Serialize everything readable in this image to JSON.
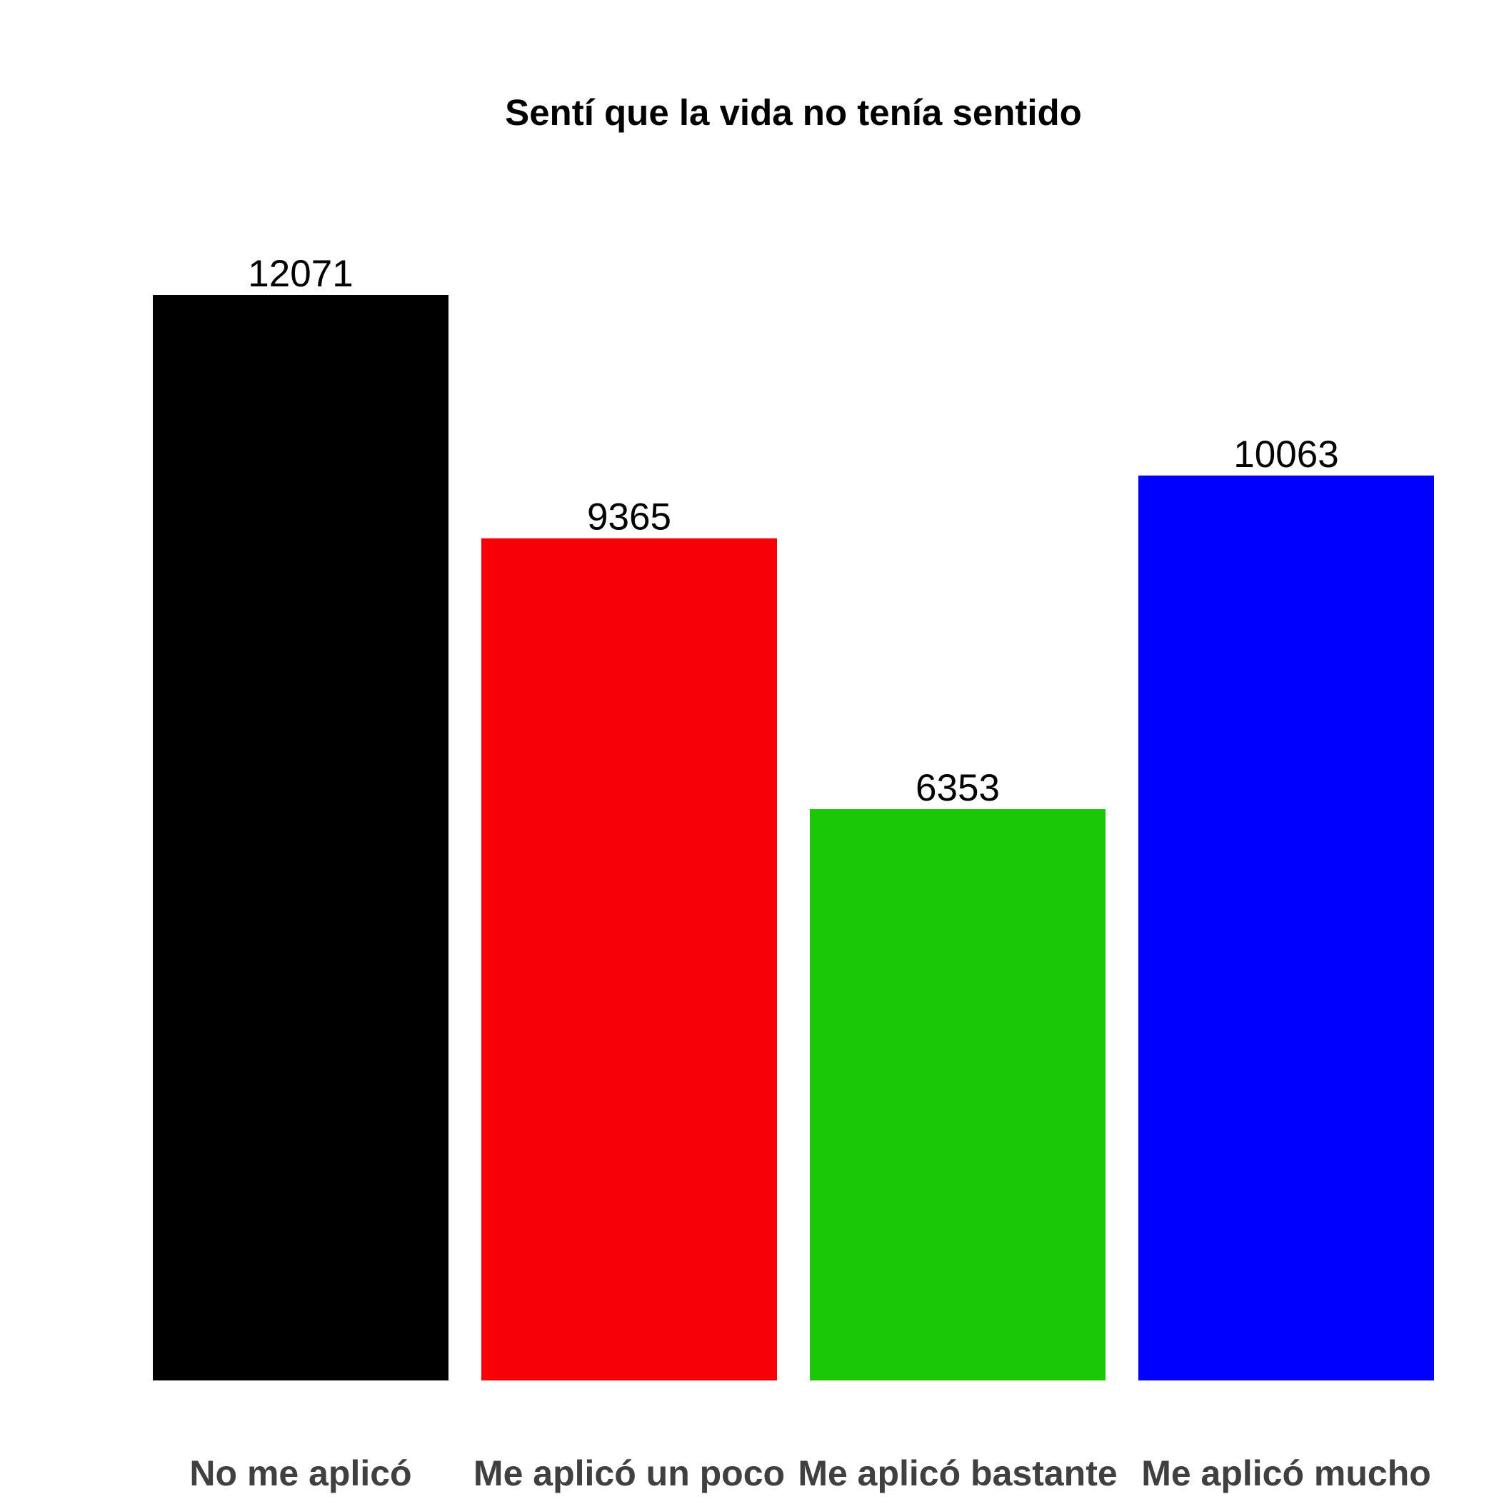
{
  "chart_data": {
    "type": "bar",
    "title": "Sentí que la vida no tenía sentido",
    "xlabel": "",
    "ylabel": "",
    "categories": [
      "No me aplicó",
      "Me aplicó un poco",
      "Me aplicó bastante",
      "Me aplicó mucho"
    ],
    "values": [
      12071,
      9365,
      6353,
      10063
    ],
    "value_labels": [
      "12071",
      "9365",
      "6353",
      "10063"
    ],
    "colors": [
      "#000000",
      "#f80008",
      "#1bc806",
      "#0000ff"
    ],
    "ylim": [
      0,
      12071
    ],
    "grid": false,
    "legend": "none"
  }
}
